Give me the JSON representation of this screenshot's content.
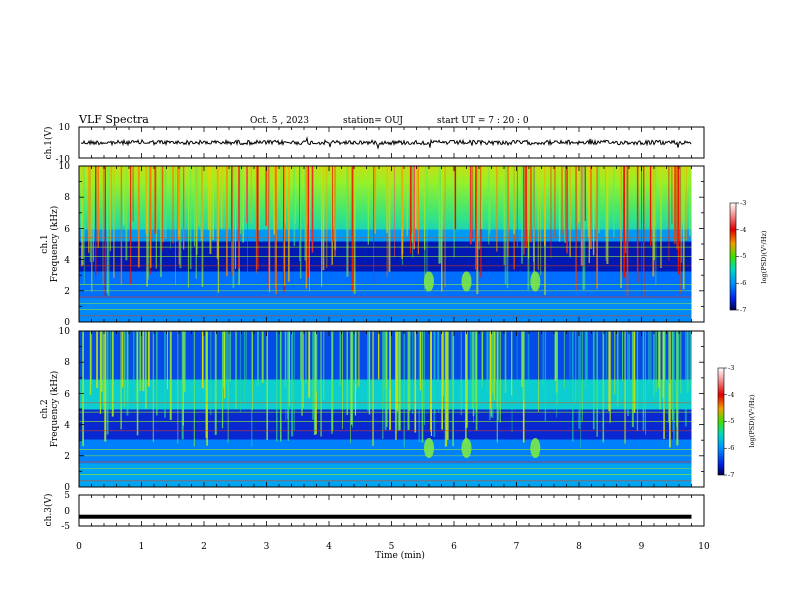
{
  "header": {
    "title": "VLF Spectra",
    "date": "Oct. 5 , 2023",
    "station": "station= OUJ",
    "start": "start UT =  7 : 20 : 0"
  },
  "chart_data": [
    {
      "type": "line",
      "panel": "ch1-waveform",
      "ylabel": "ch.1(V)",
      "ylim": [
        -10,
        10
      ],
      "yticks": [
        "10",
        "-10"
      ],
      "xlim": [
        0,
        10
      ],
      "series": [
        {
          "x_end": 9.8,
          "baseline": 0.0,
          "noise_amplitude": 1.0
        }
      ],
      "color": "#000000"
    },
    {
      "type": "heatmap",
      "panel": "ch1-spectrogram",
      "ylabel": "ch.1\nFrequency (kHz)",
      "ylabel_line1": "ch.1",
      "ylabel_line2": "Frequency (kHz)",
      "ylim": [
        0,
        10
      ],
      "yticks": [
        "0",
        "2",
        "4",
        "6",
        "8",
        "10"
      ],
      "xlim": [
        0,
        10
      ],
      "x_end": 9.8,
      "features": {
        "chorus_band_khz": [
          6,
          10
        ],
        "dark_band_khz": [
          3.2,
          5
        ],
        "bursts_min": [
          5.6,
          6.2,
          7.3
        ],
        "burst_center_khz": 2.6
      },
      "colorbar": {
        "label": "log(PSD)(V²/Hz)",
        "ticks": [
          "-3",
          "-4",
          "-5",
          "-6",
          "-7"
        ],
        "range": [
          -7,
          -3
        ]
      }
    },
    {
      "type": "heatmap",
      "panel": "ch2-spectrogram",
      "ylabel": "ch.2\nFrequency (kHz)",
      "ylabel_line1": "ch.2",
      "ylabel_line2": "Frequency (kHz)",
      "ylim": [
        0,
        10
      ],
      "yticks": [
        "0",
        "2",
        "4",
        "6",
        "8",
        "10"
      ],
      "xlim": [
        0,
        10
      ],
      "x_end": 9.8,
      "features": {
        "chorus_band_khz": [
          5,
          7
        ],
        "dark_band_khz": [
          3,
          5
        ],
        "bursts_min": [
          5.6,
          6.2,
          7.3
        ],
        "burst_center_khz": 2.5
      },
      "colorbar": {
        "label": "log(PSD)(V²/Hz)",
        "ticks": [
          "-3",
          "-4",
          "-5",
          "-6",
          "-7"
        ],
        "range": [
          -7,
          -3
        ]
      }
    },
    {
      "type": "line",
      "panel": "ch3-waveform",
      "ylabel": "ch.3(V)",
      "ylim": [
        -5,
        5
      ],
      "yticks": [
        "5",
        "0",
        "-5"
      ],
      "xlim": [
        0,
        10
      ],
      "xlabel": "Time (min)",
      "xticks": [
        "0",
        "1",
        "2",
        "3",
        "4",
        "5",
        "6",
        "7",
        "8",
        "9",
        "10"
      ],
      "series": [
        {
          "x_end": 9.8,
          "value": -2.0
        }
      ],
      "color": "#000000"
    }
  ]
}
